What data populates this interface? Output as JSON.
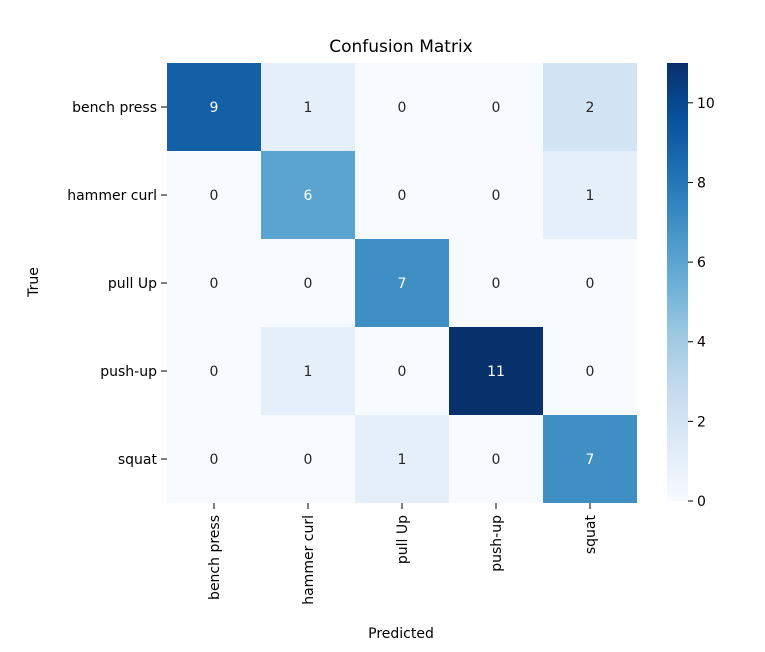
{
  "chart_data": {
    "type": "heatmap",
    "title": "Confusion Matrix",
    "xlabel": "Predicted",
    "ylabel": "True",
    "x_categories": [
      "bench press",
      "hammer curl",
      "pull Up",
      "push-up",
      "squat"
    ],
    "y_categories": [
      "bench press",
      "hammer curl",
      "pull Up",
      "push-up",
      "squat"
    ],
    "values": [
      [
        9,
        1,
        0,
        0,
        2
      ],
      [
        0,
        6,
        0,
        0,
        1
      ],
      [
        0,
        0,
        7,
        0,
        0
      ],
      [
        0,
        1,
        0,
        11,
        0
      ],
      [
        0,
        0,
        1,
        0,
        7
      ]
    ],
    "colorbar": {
      "min": 0,
      "max": 11,
      "ticks": [
        0,
        2,
        4,
        6,
        8,
        10
      ]
    },
    "colormap": "Blues",
    "colormap_stops": [
      "#f7fbff",
      "#deebf7",
      "#c6dbef",
      "#9ecae1",
      "#6baed6",
      "#4292c6",
      "#2171b5",
      "#08519c",
      "#08306b"
    ]
  }
}
